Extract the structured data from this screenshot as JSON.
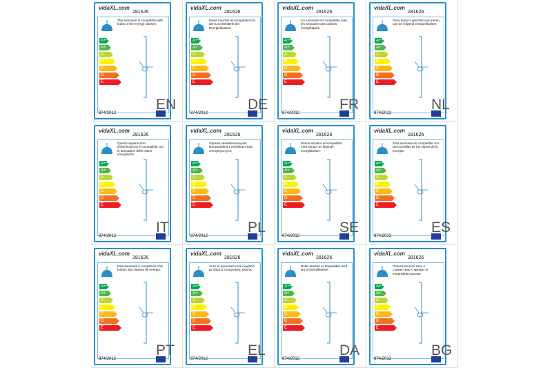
{
  "brand": "vidaXL.com",
  "product_number": "281626",
  "regulation": "874/2012",
  "energy_classes": [
    "A++",
    "A+",
    "A",
    "B",
    "C",
    "D",
    "E"
  ],
  "labels": [
    {
      "language": "EN",
      "text": "This luminaire is compatible with bulbs of the energy classes:"
    },
    {
      "language": "DE",
      "text": "Diese Leuchte ist kompatibel mit den Leuchtmitteln der Energieklassen:"
    },
    {
      "language": "FR",
      "text": "Ce luminaire est compatible avec les ampoules des classes énergétiques:"
    },
    {
      "language": "NL",
      "text": "Deze lamp is geschikt voor peren van de volgend energieklassen:"
    },
    {
      "language": "IT",
      "text": "Questo apparecchio d'illuminazione è compatibile con le lampadine delle classi energetiche:"
    },
    {
      "language": "PL",
      "text": "Oprawa oświetleniowa jest kompatybilna z żarówkami klas energetycznych:"
    },
    {
      "language": "SE",
      "text": "Denna armatur är kompatibel med lampor av följande energiklasser:"
    },
    {
      "language": "ES",
      "text": "Esta luminaria es compatible con las bombillas de las clases de la energía:"
    },
    {
      "language": "PT",
      "text": "Esta luminária é compatível com bulbos das classes de energia:"
    },
    {
      "language": "EL",
      "text": "Αυτό το φωτιστικό είναι συμβατό με λάμπες ενεργειακής κλάσης:"
    },
    {
      "language": "DA",
      "text": "Dette armatur er kompatibel med lyg af energiklasser:"
    },
    {
      "language": "BG",
      "text": "Осветителното тяло е съвместимо с крушки от енергийни класове:"
    }
  ]
}
